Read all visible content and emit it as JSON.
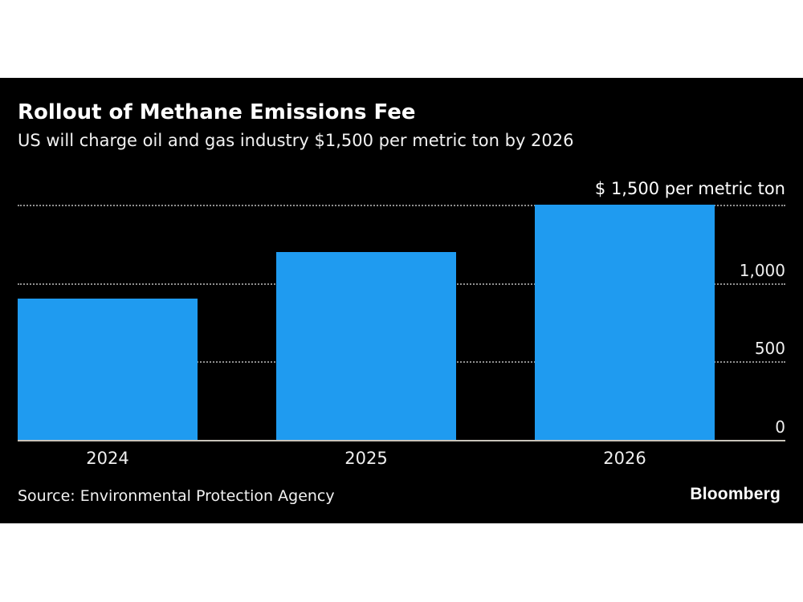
{
  "page": {
    "background_color": "#ffffff"
  },
  "card": {
    "background_color": "#000000"
  },
  "header": {
    "title": "Rollout of Methane Emissions Fee",
    "subtitle": "US will charge oil and gas industry $1,500 per metric ton by 2026"
  },
  "chart_data": {
    "type": "bar",
    "title": "Rollout of Methane Emissions Fee",
    "subtitle": "US will charge oil and gas industry $1,500 per metric ton by 2026",
    "categories": [
      "2024",
      "2025",
      "2026"
    ],
    "values": [
      900,
      1200,
      1500
    ],
    "unit": "$ per metric ton",
    "annotation": "$ 1,500 per metric ton",
    "annotation_value": 1500,
    "ylim": [
      0,
      1500
    ],
    "gridline_values": [
      500,
      1000,
      1500
    ],
    "ytick_values": [
      0,
      500,
      1000
    ],
    "ytick_labels": [
      "0",
      "500",
      "1,000"
    ],
    "grid_style": "dotted",
    "legend": "none",
    "axis_label_side": "right",
    "bar_color": "#1f9bf0",
    "grid_color": "#8f8f8f",
    "baseline_color": "#c9c4ba",
    "text_color": "#ffffff",
    "plot_background": "#000000"
  },
  "footer": {
    "source": "Source: Environmental Protection Agency",
    "logo": "Bloomberg"
  }
}
